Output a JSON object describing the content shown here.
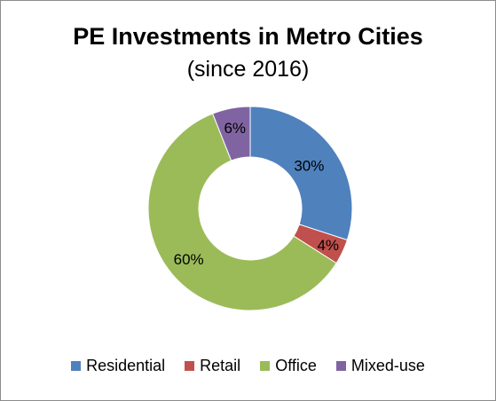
{
  "chart_data": {
    "type": "pie",
    "donut": true,
    "title": "PE Investments in Metro Cities",
    "subtitle": "(since 2016)",
    "categories": [
      "Residential",
      "Retail",
      "Office",
      "Mixed-use"
    ],
    "values": [
      30,
      4,
      60,
      6
    ],
    "labels": [
      "30%",
      "4%",
      "60%",
      "6%"
    ],
    "colors": [
      "#4f81bd",
      "#c0504d",
      "#9bbb59",
      "#8064a2"
    ],
    "legend_position": "bottom",
    "start_angle": "top, clockwise"
  }
}
